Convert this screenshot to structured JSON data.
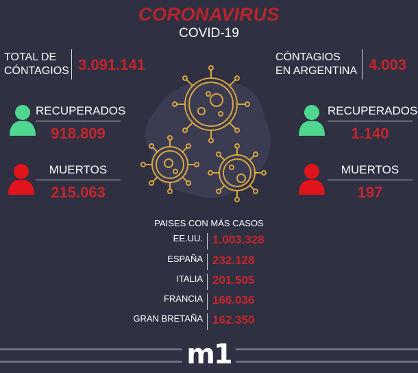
{
  "header": {
    "title": "CORONAVIRUS",
    "subtitle": "COVID-19"
  },
  "left": {
    "total_label_1": "TOTAL DE",
    "total_label_2": "CÓNTAGIOS",
    "total_value": "3.091.141",
    "recovered_label": "RECUPERADOS",
    "recovered_value": "918.809",
    "deaths_label": "MUERTOS",
    "deaths_value": "215.063"
  },
  "right": {
    "total_label_1": "CÓNTAGIOS",
    "total_label_2": "EN ARGENTINA",
    "total_value": "4.003",
    "recovered_label": "RECUPERADOS",
    "recovered_value": "1.140",
    "deaths_label": "MUERTOS",
    "deaths_value": "197"
  },
  "countries": {
    "heading": "PAISES CON MÁS CASOS",
    "rows": [
      {
        "name": "EE.UU.",
        "value": "1.003.328"
      },
      {
        "name": "ESPAÑA",
        "value": "232.128"
      },
      {
        "name": "ITALIA",
        "value": "201.505"
      },
      {
        "name": "FRANCIA",
        "value": "166.036"
      },
      {
        "name": "GRAN BRETAÑA",
        "value": "162.350"
      }
    ]
  },
  "footer": {
    "logo": "m1"
  },
  "colors": {
    "background": "#2f3042",
    "accent_red": "#c4262b",
    "recovered_green": "#4fd68f",
    "deaths_red": "#e0141c",
    "virus_gold": "#d9a640"
  },
  "icons": [
    "person-recovered-icon",
    "person-dead-icon",
    "virus-illustration"
  ]
}
